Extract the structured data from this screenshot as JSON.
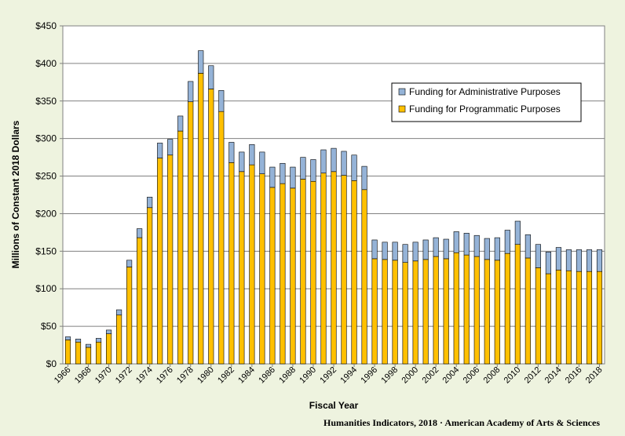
{
  "chart_data": {
    "type": "bar",
    "stacked": true,
    "xlabel": "Fiscal Year",
    "ylabel": "Millions of Constant 2018 Dollars",
    "ylim": [
      0,
      450
    ],
    "y_ticks": [
      0,
      50,
      100,
      150,
      200,
      250,
      300,
      350,
      400,
      450
    ],
    "y_tick_labels": [
      "$0",
      "$50",
      "$100",
      "$150",
      "$200",
      "$250",
      "$300",
      "$350",
      "$400",
      "$450"
    ],
    "grid": true,
    "legend_position": "upper-right",
    "categories": [
      1966,
      1967,
      1968,
      1969,
      1970,
      1971,
      1972,
      1973,
      1974,
      1975,
      1976,
      1977,
      1978,
      1979,
      1980,
      1981,
      1982,
      1983,
      1984,
      1985,
      1986,
      1987,
      1988,
      1989,
      1990,
      1991,
      1992,
      1993,
      1994,
      1995,
      1996,
      1997,
      1998,
      1999,
      2000,
      2001,
      2002,
      2003,
      2004,
      2005,
      2006,
      2007,
      2008,
      2009,
      2010,
      2011,
      2012,
      2013,
      2014,
      2015,
      2016,
      2017,
      2018
    ],
    "x_tick_labels": [
      "1966",
      "1968",
      "1970",
      "1972",
      "1974",
      "1976",
      "1978",
      "1980",
      "1982",
      "1984",
      "1986",
      "1988",
      "1990",
      "1992",
      "1994",
      "1996",
      "1998",
      "2000",
      "2002",
      "2004",
      "2006",
      "2008",
      "2010",
      "2012",
      "2014",
      "2016",
      "2018"
    ],
    "series": [
      {
        "name": "Funding for Programmatic Purposes",
        "color": "#ffc000",
        "values": [
          32,
          29,
          22,
          29,
          40,
          65,
          129,
          168,
          208,
          274,
          278,
          310,
          349,
          387,
          366,
          336,
          268,
          256,
          265,
          253,
          235,
          240,
          234,
          246,
          243,
          254,
          256,
          251,
          244,
          232,
          140,
          139,
          138,
          135,
          137,
          139,
          143,
          140,
          148,
          145,
          143,
          139,
          138,
          147,
          159,
          141,
          128,
          120,
          125,
          124,
          123,
          123,
          123
        ]
      },
      {
        "name": "Funding for Administrative Purposes",
        "color": "#95b3d7",
        "values": [
          4,
          4,
          4,
          5,
          5,
          7,
          9,
          12,
          14,
          20,
          21,
          20,
          27,
          30,
          31,
          28,
          27,
          26,
          27,
          29,
          27,
          27,
          28,
          29,
          29,
          31,
          31,
          32,
          34,
          31,
          25,
          23,
          24,
          24,
          25,
          26,
          25,
          26,
          28,
          29,
          28,
          28,
          30,
          31,
          31,
          31,
          31,
          29,
          30,
          28,
          29,
          29,
          29
        ]
      }
    ]
  },
  "legend_order": [
    1,
    0
  ],
  "credit": "Humanities Indicators, 2018 · American Academy of Arts & Sciences"
}
